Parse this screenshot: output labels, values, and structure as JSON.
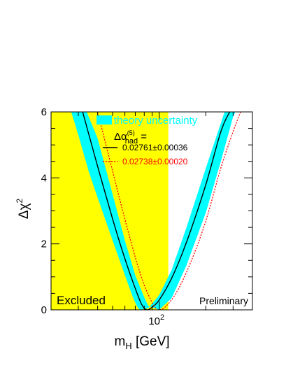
{
  "chart_data": {
    "type": "line",
    "title": "",
    "xlabel": {
      "main": "m",
      "sub": "H",
      "unit": " [GeV]"
    },
    "ylabel": {
      "main": "Δχ",
      "sup": "2"
    },
    "x_scale": "log",
    "xlim": [
      20,
      400
    ],
    "ylim": [
      0,
      6
    ],
    "x_tick_label": {
      "base": "10",
      "exp": "2"
    },
    "x_tick_label_value": 100,
    "y_tick_labels": [
      "0",
      "2",
      "4",
      "6"
    ],
    "y_tick_values": [
      0,
      2,
      4,
      6
    ],
    "excluded_region": {
      "x": [
        20,
        114.4
      ],
      "color": "#ffff00",
      "label": "Excluded"
    },
    "corner_label": "Preliminary",
    "legend": {
      "position": "top-center",
      "band_label": "theory uncertainty",
      "band_color": "#00ffff",
      "header": {
        "main": "Δα",
        "sup": "(5)",
        "sub": "had",
        "suffix": " ="
      },
      "entries": [
        {
          "label": "0.02761±0.00036",
          "color": "#000000",
          "style": "solid"
        },
        {
          "label": "0.02738±0.00020",
          "color": "#ff0000",
          "style": "dotted"
        }
      ]
    },
    "series": [
      {
        "style": "solid",
        "color": "#000000",
        "x": [
          32,
          40,
          50,
          60,
          70,
          76,
          80,
          84,
          90,
          100,
          120,
          150,
          200,
          250,
          285
        ],
        "y": [
          6.0,
          4.35,
          2.75,
          1.55,
          0.65,
          0.22,
          0.05,
          0.0,
          0.08,
          0.3,
          0.95,
          2.05,
          3.8,
          5.4,
          6.0
        ]
      },
      {
        "style": "dotted",
        "color": "#ff0000",
        "x": [
          40,
          50,
          60,
          70,
          80,
          90,
          96,
          100,
          110,
          130,
          160,
          200,
          250,
          300,
          335
        ],
        "y": [
          6.0,
          4.2,
          2.75,
          1.6,
          0.75,
          0.22,
          0.03,
          0.0,
          0.1,
          0.55,
          1.45,
          2.7,
          4.3,
          5.4,
          6.0
        ]
      }
    ],
    "band": {
      "color": "#00ffff",
      "lower_edge": {
        "x": [
          34,
          40,
          50,
          60,
          70,
          80,
          85,
          100,
          120,
          150,
          200,
          250,
          300,
          310
        ],
        "y": [
          6.0,
          5.2,
          3.5,
          2.1,
          1.05,
          0.38,
          0.12,
          0.0,
          0.35,
          1.35,
          2.95,
          4.5,
          5.85,
          6.0
        ]
      },
      "upper_edge": {
        "x": [
          27,
          30,
          35,
          40,
          50,
          60,
          68,
          72,
          75,
          85,
          100,
          120,
          150,
          200,
          260,
          265
        ],
        "y": [
          6.0,
          5.3,
          4.2,
          3.4,
          2.1,
          1.05,
          0.35,
          0.1,
          0.0,
          0.05,
          0.45,
          1.2,
          2.5,
          4.3,
          5.9,
          6.0
        ]
      }
    }
  }
}
